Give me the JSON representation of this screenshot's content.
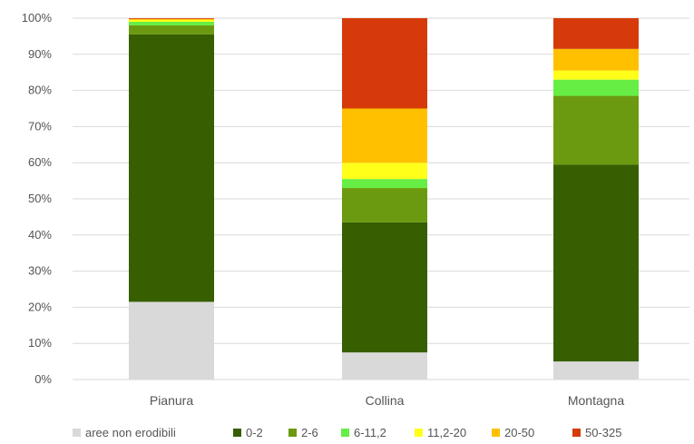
{
  "chart_data": {
    "type": "bar",
    "stacked": true,
    "percent": true,
    "categories": [
      "Pianura",
      "Collina",
      "Montagna"
    ],
    "series": [
      {
        "name": "aree non erodibili",
        "color": "#d9d9d9",
        "values": [
          21.5,
          7.5,
          5.0
        ]
      },
      {
        "name": "0-2",
        "color": "#375f00",
        "values": [
          74.0,
          36.0,
          54.5
        ]
      },
      {
        "name": "2-6",
        "color": "#6b9a10",
        "values": [
          2.5,
          9.5,
          19.0
        ]
      },
      {
        "name": "6-11,2",
        "color": "#66ee44",
        "values": [
          1.0,
          2.5,
          4.5
        ]
      },
      {
        "name": "11,2-20",
        "color": "#ffff1a",
        "values": [
          0.5,
          4.5,
          2.5
        ]
      },
      {
        "name": "20-50",
        "color": "#ffc000",
        "values": [
          0.3,
          15.0,
          6.0
        ]
      },
      {
        "name": "50-325",
        "color": "#d63a0a",
        "values": [
          0.2,
          25.0,
          8.5
        ]
      }
    ],
    "yticks": [
      "0%",
      "10%",
      "20%",
      "30%",
      "40%",
      "50%",
      "60%",
      "70%",
      "80%",
      "90%",
      "100%"
    ],
    "ylim": [
      0,
      100
    ],
    "grid": true,
    "legend": "bottom"
  }
}
